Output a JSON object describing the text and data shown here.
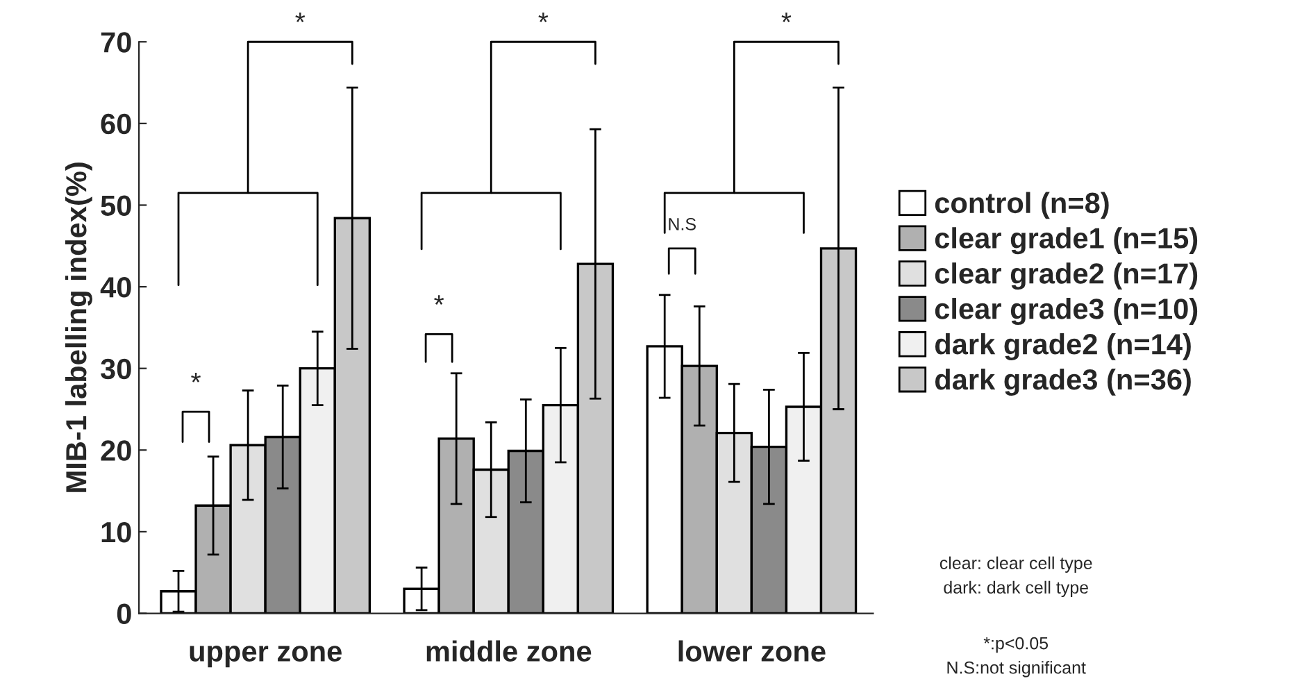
{
  "chart_data": {
    "type": "bar",
    "ylabel": "MIB-1 labelling index(%)",
    "categories": [
      "upper zone",
      "middle zone",
      "lower zone"
    ],
    "series": [
      {
        "name": "control (n=8)",
        "color": "#ffffff",
        "values": [
          2.7,
          3.0,
          32.7
        ],
        "errors": [
          2.5,
          2.6,
          6.3
        ]
      },
      {
        "name": "clear grade1 (n=15)",
        "color": "#b0b0b0",
        "values": [
          13.2,
          21.4,
          30.3
        ],
        "errors": [
          6.0,
          8.0,
          7.3
        ]
      },
      {
        "name": "clear grade2 (n=17)",
        "color": "#e0e0e0",
        "values": [
          20.6,
          17.6,
          22.1
        ],
        "errors": [
          6.7,
          5.8,
          6.0
        ]
      },
      {
        "name": "clear grade3 (n=10)",
        "color": "#8a8a8a",
        "values": [
          21.6,
          19.9,
          20.4
        ],
        "errors": [
          6.3,
          6.3,
          7.0
        ]
      },
      {
        "name": "dark grade2 (n=14)",
        "color": "#f0f0f0",
        "values": [
          30.0,
          25.5,
          25.3
        ],
        "errors": [
          4.5,
          7.0,
          6.6
        ]
      },
      {
        "name": "dark grade3 (n=36)",
        "color": "#c8c8c8",
        "values": [
          48.4,
          42.8,
          44.7
        ],
        "errors": [
          16.0,
          16.5,
          19.7
        ]
      }
    ],
    "ylim": [
      0,
      70
    ],
    "yticks": [
      0,
      10,
      20,
      30,
      40,
      50,
      60,
      70
    ],
    "grid": false,
    "legend": "right",
    "annotations": [
      "*",
      "*",
      "*",
      "*",
      "N.S",
      "*",
      "clear: clear cell type",
      "dark: dark cell type",
      "*:p<0.05",
      "N.S:not significant"
    ]
  }
}
